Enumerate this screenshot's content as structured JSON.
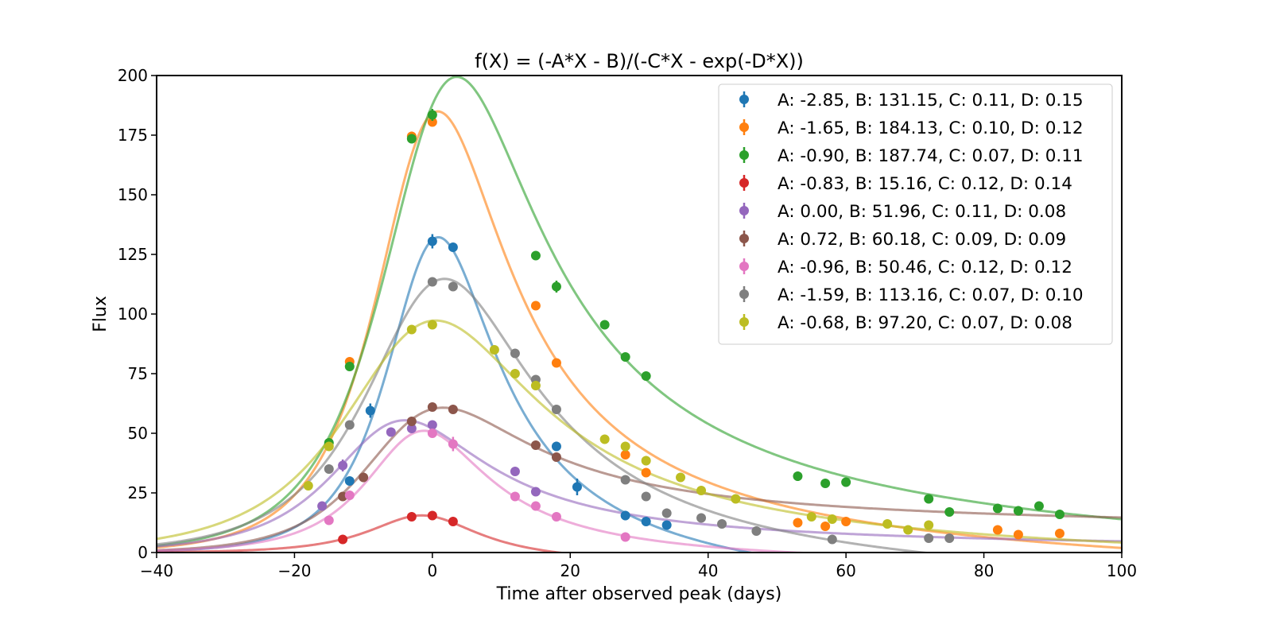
{
  "chart_data": {
    "type": "scatter",
    "title": "f(X) = (-A*X - B)/(-C*X - exp(-D*X))",
    "xlabel": "Time after observed peak (days)",
    "ylabel": "Flux",
    "xlim": [
      -40,
      100
    ],
    "ylim": [
      0,
      200
    ],
    "xticks": [
      -40,
      -20,
      0,
      20,
      40,
      60,
      80,
      100
    ],
    "xtick_labels": [
      "−40",
      "−20",
      "0",
      "20",
      "40",
      "60",
      "80",
      "100"
    ],
    "yticks": [
      0,
      25,
      50,
      75,
      100,
      125,
      150,
      175,
      200
    ],
    "ytick_labels": [
      "0",
      "25",
      "50",
      "75",
      "100",
      "125",
      "150",
      "175",
      "200"
    ],
    "grid": false,
    "legend_position": "top-right",
    "series": [
      {
        "name": "A: -2.85, B: 131.15, C: 0.11, D: 0.15",
        "color": "#1f77b4",
        "params": {
          "A": -2.85,
          "B": 131.15,
          "C": 0.11,
          "D": 0.15
        },
        "points": [
          [
            -12,
            30
          ],
          [
            -9,
            59.5
          ],
          [
            0,
            130.5
          ],
          [
            3,
            128
          ],
          [
            18,
            44.5
          ],
          [
            21,
            27.5
          ],
          [
            28,
            15.5
          ],
          [
            31,
            13
          ],
          [
            34,
            11.5
          ]
        ],
        "errors": [
          1.5,
          3,
          3,
          1.5,
          2,
          3.5,
          2,
          1.5,
          1.5
        ]
      },
      {
        "name": "A: -1.65, B: 184.13, C: 0.10, D: 0.12",
        "color": "#ff7f0e",
        "params": {
          "A": -1.65,
          "B": 184.13,
          "C": 0.1,
          "D": 0.12
        },
        "points": [
          [
            -12,
            80
          ],
          [
            -3,
            174.5
          ],
          [
            0,
            180.5
          ],
          [
            15,
            103.5
          ],
          [
            18,
            79.5
          ],
          [
            28,
            41
          ],
          [
            31,
            33.5
          ],
          [
            53,
            12.5
          ],
          [
            57,
            11
          ],
          [
            60,
            13
          ],
          [
            82,
            9.5
          ],
          [
            85,
            7.5
          ],
          [
            91,
            8
          ]
        ],
        "errors": [
          1.5,
          2,
          1.5,
          1.5,
          1.5,
          1,
          1,
          1,
          1,
          1,
          1,
          1,
          1
        ]
      },
      {
        "name": "A: -0.90, B: 187.74, C: 0.07, D: 0.11",
        "color": "#2ca02c",
        "params": {
          "A": -0.9,
          "B": 187.74,
          "C": 0.07,
          "D": 0.11
        },
        "points": [
          [
            -15,
            46
          ],
          [
            -12,
            78
          ],
          [
            -3,
            173.5
          ],
          [
            0,
            183.5
          ],
          [
            15,
            124.5
          ],
          [
            18,
            111.5
          ],
          [
            25,
            95.5
          ],
          [
            28,
            82
          ],
          [
            31,
            74
          ],
          [
            53,
            32
          ],
          [
            57,
            29
          ],
          [
            60,
            29.5
          ],
          [
            72,
            22.5
          ],
          [
            75,
            17
          ],
          [
            82,
            18.5
          ],
          [
            85,
            17.5
          ],
          [
            88,
            19.5
          ],
          [
            91,
            16
          ]
        ],
        "errors": [
          1.5,
          1.5,
          2,
          2.5,
          1.5,
          2.5,
          1,
          1.5,
          1,
          2,
          1,
          1,
          1,
          1,
          1,
          2,
          1,
          1
        ]
      },
      {
        "name": "A: -0.83, B: 15.16, C: 0.12, D: 0.14",
        "color": "#d62728",
        "params": {
          "A": -0.83,
          "B": 15.16,
          "C": 0.12,
          "D": 0.14
        },
        "points": [
          [
            -13,
            5.5
          ],
          [
            -3,
            15
          ],
          [
            0,
            15.5
          ],
          [
            3,
            13
          ]
        ],
        "errors": [
          1,
          1,
          1,
          1
        ]
      },
      {
        "name": "A: 0.00, B: 51.96, C: 0.11, D: 0.08",
        "color": "#9467bd",
        "params": {
          "A": 0.0,
          "B": 51.96,
          "C": 0.11,
          "D": 0.08
        },
        "points": [
          [
            -16,
            19.5
          ],
          [
            -13,
            36.5
          ],
          [
            -6,
            50.5
          ],
          [
            -3,
            52
          ],
          [
            0,
            53.5
          ],
          [
            12,
            34
          ],
          [
            15,
            25.5
          ]
        ],
        "errors": [
          1,
          2.5,
          1,
          1,
          1.5,
          1,
          1
        ]
      },
      {
        "name": "A: 0.72, B: 60.18, C: 0.09, D: 0.09",
        "color": "#8c564b",
        "params": {
          "A": 0.72,
          "B": 60.18,
          "C": 0.09,
          "D": 0.09
        },
        "points": [
          [
            -13,
            23.5
          ],
          [
            -10,
            31.5
          ],
          [
            -3,
            55
          ],
          [
            0,
            61
          ],
          [
            3,
            60
          ],
          [
            15,
            45
          ],
          [
            18,
            40
          ]
        ],
        "errors": [
          1,
          2,
          1.5,
          1,
          1,
          1,
          1
        ]
      },
      {
        "name": "A: -0.96, B: 50.46, C: 0.12, D: 0.12",
        "color": "#e377c2",
        "params": {
          "A": -0.96,
          "B": 50.46,
          "C": 0.12,
          "D": 0.12
        },
        "points": [
          [
            -15,
            13.5
          ],
          [
            -12,
            24
          ],
          [
            0,
            50
          ],
          [
            3,
            45.5
          ],
          [
            12,
            23.5
          ],
          [
            15,
            19.5
          ],
          [
            18,
            15
          ],
          [
            28,
            6.5
          ]
        ],
        "errors": [
          1,
          1,
          1.5,
          3,
          1,
          1,
          1,
          1
        ]
      },
      {
        "name": "A: -1.59, B: 113.16, C: 0.07, D: 0.10",
        "color": "#7f7f7f",
        "params": {
          "A": -1.59,
          "B": 113.16,
          "C": 0.07,
          "D": 0.1
        },
        "points": [
          [
            -15,
            35
          ],
          [
            -12,
            53.5
          ],
          [
            0,
            113.5
          ],
          [
            3,
            111.5
          ],
          [
            12,
            83.5
          ],
          [
            15,
            72.5
          ],
          [
            18,
            60
          ],
          [
            28,
            30.5
          ],
          [
            31,
            23.5
          ],
          [
            34,
            16.5
          ],
          [
            39,
            14.5
          ],
          [
            42,
            12
          ],
          [
            47,
            9
          ],
          [
            58,
            5.5
          ],
          [
            72,
            6
          ],
          [
            75,
            6
          ]
        ],
        "errors": [
          1,
          1,
          1,
          1,
          1,
          1.5,
          1,
          1,
          1,
          2,
          1,
          1,
          1,
          1,
          1,
          1
        ]
      },
      {
        "name": "A: -0.68, B: 97.20, C: 0.07, D: 0.08",
        "color": "#bcbd22",
        "params": {
          "A": -0.68,
          "B": 97.2,
          "C": 0.07,
          "D": 0.08
        },
        "points": [
          [
            -18,
            28
          ],
          [
            -15,
            44.5
          ],
          [
            -3,
            93.5
          ],
          [
            0,
            95.5
          ],
          [
            9,
            85
          ],
          [
            12,
            75
          ],
          [
            15,
            70
          ],
          [
            25,
            47.5
          ],
          [
            28,
            44.5
          ],
          [
            31,
            38.5
          ],
          [
            36,
            31.5
          ],
          [
            39,
            26
          ],
          [
            44,
            22.5
          ],
          [
            55,
            15
          ],
          [
            58,
            14
          ],
          [
            66,
            12
          ],
          [
            69,
            9.5
          ],
          [
            72,
            11.5
          ]
        ],
        "errors": [
          1,
          1.5,
          1,
          1.5,
          1,
          1,
          2,
          1,
          1,
          2,
          1.5,
          1,
          1,
          1,
          1,
          1,
          1,
          1
        ]
      }
    ]
  }
}
